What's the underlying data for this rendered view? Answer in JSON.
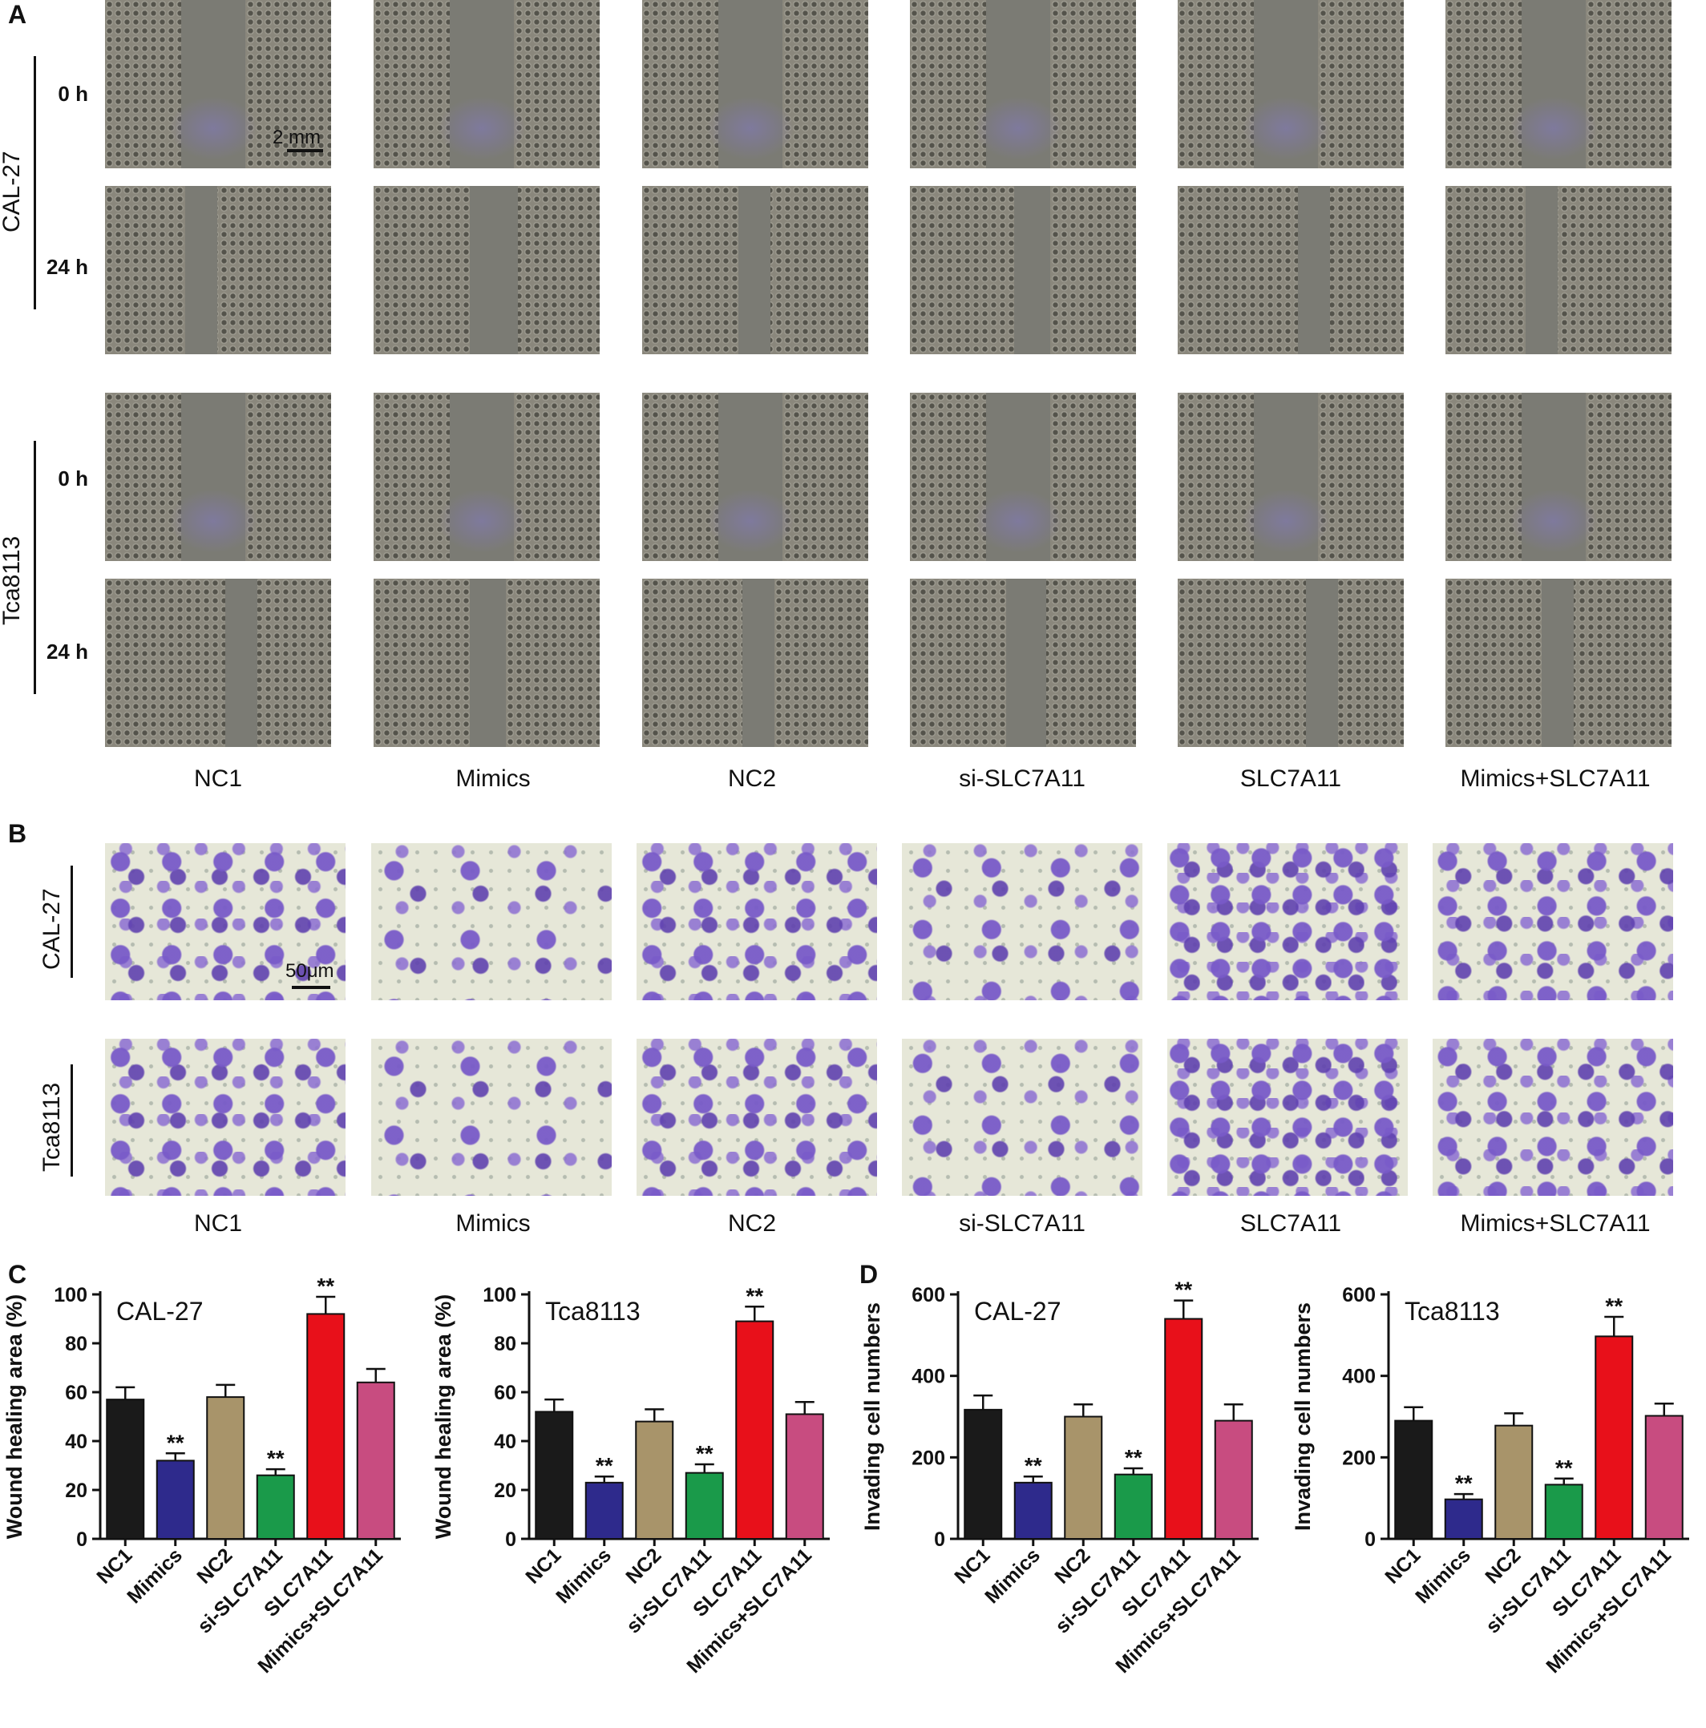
{
  "panels": {
    "a": "A",
    "b": "B",
    "c": "C",
    "d": "D"
  },
  "groups": [
    "NC1",
    "Mimics",
    "NC2",
    "si-SLC7A11",
    "SLC7A11",
    "Mimics+SLC7A11"
  ],
  "panel_a": {
    "cell_lines": [
      "CAL-27",
      "Tca8113"
    ],
    "time_labels": [
      "0  h",
      "24  h"
    ],
    "scale_label": "2 mm"
  },
  "panel_b": {
    "cell_lines": [
      "CAL-27",
      "Tca8113"
    ],
    "scale_label": "50μm"
  },
  "colors": {
    "NC1": "#1a1a1a",
    "Mimics": "#2e2a8c",
    "NC2": "#a8946a",
    "si-SLC7A11": "#1a9a4a",
    "SLC7A11": "#e8101a",
    "Mimics+SLC7A11": "#c84c80"
  },
  "chart_data": [
    {
      "type": "bar",
      "panel": "C",
      "title": "CAL-27",
      "ylabel": "Wound healing area (%)",
      "categories": [
        "NC1",
        "Mimics",
        "NC2",
        "si-SLC7A11",
        "SLC7A11",
        "Mimics+SLC7A11"
      ],
      "values": [
        57,
        32,
        58,
        26,
        92,
        64
      ],
      "errors": [
        5,
        3,
        5,
        2.5,
        7,
        5.5
      ],
      "significance": [
        "",
        "**",
        "",
        "**",
        "**",
        ""
      ],
      "ylim": [
        0,
        100
      ],
      "yticks": [
        0,
        20,
        40,
        60,
        80,
        100
      ]
    },
    {
      "type": "bar",
      "panel": "C",
      "title": "Tca8113",
      "ylabel": "Wound healing area (%)",
      "categories": [
        "NC1",
        "Mimics",
        "NC2",
        "si-SLC7A11",
        "SLC7A11",
        "Mimics+SLC7A11"
      ],
      "values": [
        52,
        23,
        48,
        27,
        89,
        51
      ],
      "errors": [
        5,
        2.5,
        5,
        3.5,
        6,
        5
      ],
      "significance": [
        "",
        "**",
        "",
        "**",
        "**",
        ""
      ],
      "ylim": [
        0,
        100
      ],
      "yticks": [
        0,
        20,
        40,
        60,
        80,
        100
      ]
    },
    {
      "type": "bar",
      "panel": "D",
      "title": "CAL-27",
      "ylabel": "Invading cell numbers",
      "categories": [
        "NC1",
        "Mimics",
        "NC2",
        "si-SLC7A11",
        "SLC7A11",
        "Mimics+SLC7A11"
      ],
      "values": [
        317,
        138,
        300,
        158,
        540,
        290
      ],
      "errors": [
        35,
        15,
        30,
        15,
        45,
        40
      ],
      "significance": [
        "",
        "**",
        "",
        "**",
        "**",
        ""
      ],
      "ylim": [
        0,
        600
      ],
      "yticks": [
        0,
        200,
        400,
        600
      ]
    },
    {
      "type": "bar",
      "panel": "D",
      "title": "Tca8113",
      "ylabel": "Invading cell numbers",
      "categories": [
        "NC1",
        "Mimics",
        "NC2",
        "si-SLC7A11",
        "SLC7A11",
        "Mimics+SLC7A11"
      ],
      "values": [
        290,
        97,
        278,
        133,
        497,
        302
      ],
      "errors": [
        33,
        13,
        30,
        15,
        48,
        30
      ],
      "significance": [
        "",
        "**",
        "",
        "**",
        "**",
        ""
      ],
      "ylim": [
        0,
        600
      ],
      "yticks": [
        0,
        200,
        400,
        600
      ]
    }
  ]
}
